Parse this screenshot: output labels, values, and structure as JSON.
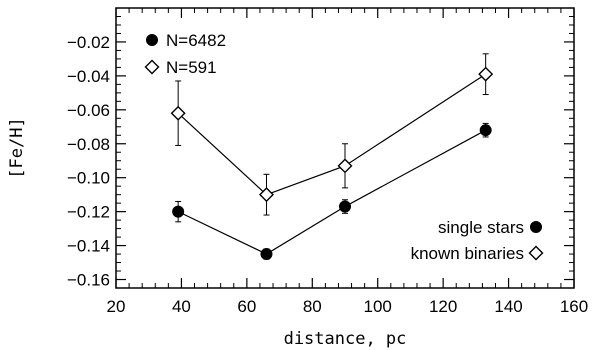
{
  "chart_data": {
    "type": "line",
    "xlabel": "distance, pc",
    "ylabel": "[Fe/H]",
    "xlim": [
      20,
      160
    ],
    "ylim": [
      -0.165,
      0.0
    ],
    "x_ticks": [
      20,
      40,
      60,
      80,
      100,
      120,
      140,
      160
    ],
    "x_tick_labels": [
      "20",
      "40",
      "60",
      "80",
      "100",
      "120",
      "140",
      "160"
    ],
    "y_ticks": [
      -0.16,
      -0.14,
      -0.12,
      -0.1,
      -0.08,
      -0.06,
      -0.04,
      -0.02
    ],
    "y_tick_labels": [
      "−0.16",
      "−0.14",
      "−0.12",
      "−0.10",
      "−0.08",
      "−0.06",
      "−0.04",
      "−0.02"
    ],
    "grid": false,
    "top_legend": [
      {
        "marker": "filled-circle",
        "label": "N=6482"
      },
      {
        "marker": "open-diamond",
        "label": "N=591"
      }
    ],
    "bottom_legend": [
      {
        "marker": "filled-circle",
        "label": "single stars"
      },
      {
        "marker": "open-diamond",
        "label": "known binaries"
      }
    ],
    "series": [
      {
        "marker": "filled-circle",
        "x": [
          39,
          66,
          90,
          133
        ],
        "y": [
          -0.12,
          -0.145,
          -0.117,
          -0.072
        ],
        "err": [
          0.006,
          0.003,
          0.004,
          0.004
        ]
      },
      {
        "marker": "open-diamond",
        "x": [
          39,
          66,
          90,
          133
        ],
        "y": [
          -0.062,
          -0.11,
          -0.093,
          -0.039
        ],
        "err": [
          0.019,
          0.012,
          0.013,
          0.012
        ]
      }
    ]
  }
}
